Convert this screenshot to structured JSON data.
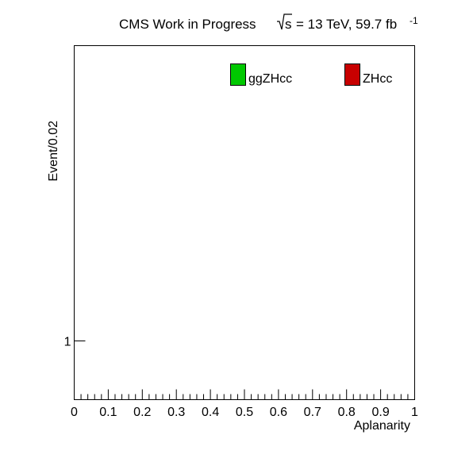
{
  "chart_data": {
    "type": "bar",
    "title": {
      "main": "CMS Work in Progress",
      "energy_prefix": "s",
      "energy_text": "= 13 TeV, 59.7 fb",
      "energy_superscript": "-1"
    },
    "xlabel": "Aplanarity",
    "ylabel": "Event/0.02",
    "xlim": [
      0,
      1
    ],
    "x_ticks": [
      0,
      0.1,
      0.2,
      0.3,
      0.4,
      0.5,
      0.6,
      0.7,
      0.8,
      0.9,
      1
    ],
    "x_tick_labels": [
      "0",
      "0.1",
      "0.2",
      "0.3",
      "0.4",
      "0.5",
      "0.6",
      "0.7",
      "0.8",
      "0.9",
      "1"
    ],
    "y_ticks": [
      1
    ],
    "y_tick_labels": [
      "1"
    ],
    "bin_width": 0.02,
    "grid": false,
    "legend": {
      "placement": "top-right",
      "entries": [
        {
          "label": "ggZHcc",
          "color": "#00c800",
          "border": "#000000"
        },
        {
          "label": "ZHcc",
          "color": "#c80000",
          "border": "#00008b"
        }
      ]
    },
    "series": [
      {
        "name": "ggZHcc",
        "values": []
      },
      {
        "name": "ZHcc",
        "values": []
      }
    ]
  }
}
